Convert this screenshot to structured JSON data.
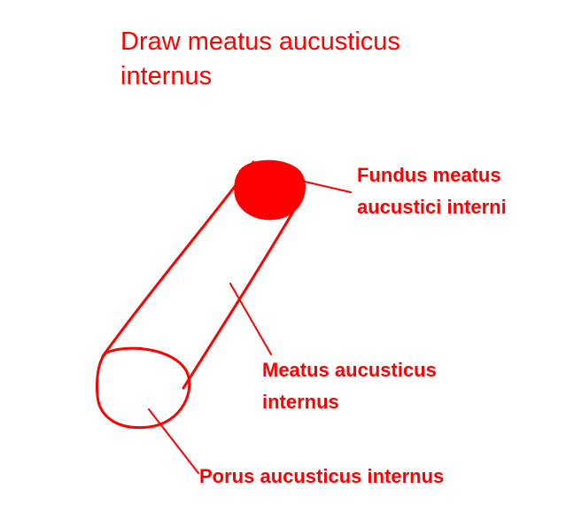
{
  "title": {
    "line1": "Draw meatus aucusticus",
    "line2": "internus"
  },
  "labels": {
    "fundus": {
      "line1": "Fundus meatus",
      "line2": "aucustici interni"
    },
    "meatus": {
      "line1": "Meatus aucusticus",
      "line2": "internus"
    },
    "porus": {
      "line1": "Porus aucusticus internus"
    }
  },
  "colors": {
    "ink": "#ff0000",
    "background": "#ffffff"
  }
}
